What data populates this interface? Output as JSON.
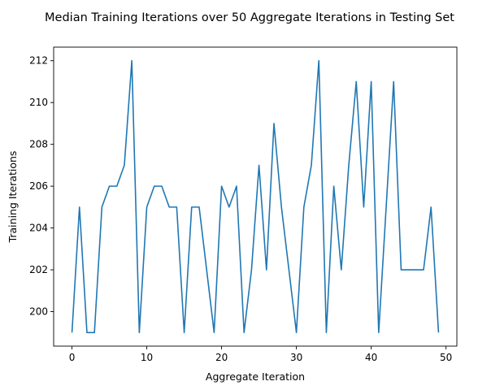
{
  "chart_data": {
    "type": "line",
    "title": "Median Training Iterations over 50 Aggregate Iterations in Testing Set",
    "xlabel": "Aggregate Iteration",
    "ylabel": "Training Iterations",
    "xlim": [
      -2.45,
      51.45
    ],
    "ylim": [
      198.35,
      212.65
    ],
    "xticks": [
      0,
      10,
      20,
      30,
      40,
      50
    ],
    "yticks": [
      200,
      202,
      204,
      206,
      208,
      210,
      212
    ],
    "grid": false,
    "legend": "none",
    "colors": {
      "line": "#1f77b4"
    },
    "series": [
      {
        "x": [
          0,
          1,
          2,
          3,
          4,
          5,
          6,
          7,
          8,
          9,
          10,
          11,
          12,
          13,
          14,
          15,
          16,
          17,
          18,
          19,
          20,
          21,
          22,
          23,
          24,
          25,
          26,
          27,
          28,
          29,
          30,
          31,
          32,
          33,
          34,
          35,
          36,
          37,
          38,
          39,
          40,
          41,
          42,
          43,
          44,
          45,
          46,
          47,
          48,
          49
        ],
        "values": [
          199,
          205,
          199,
          199,
          205,
          206,
          206,
          207,
          212,
          199,
          205,
          206,
          206,
          205,
          205,
          199,
          205,
          205,
          202,
          199,
          206,
          205,
          206,
          199,
          202,
          207,
          202,
          209,
          205,
          202,
          199,
          205,
          207,
          212,
          199,
          206,
          202,
          207,
          211,
          205,
          211,
          199,
          205,
          211,
          202,
          202,
          202,
          202,
          205,
          199
        ]
      }
    ]
  }
}
